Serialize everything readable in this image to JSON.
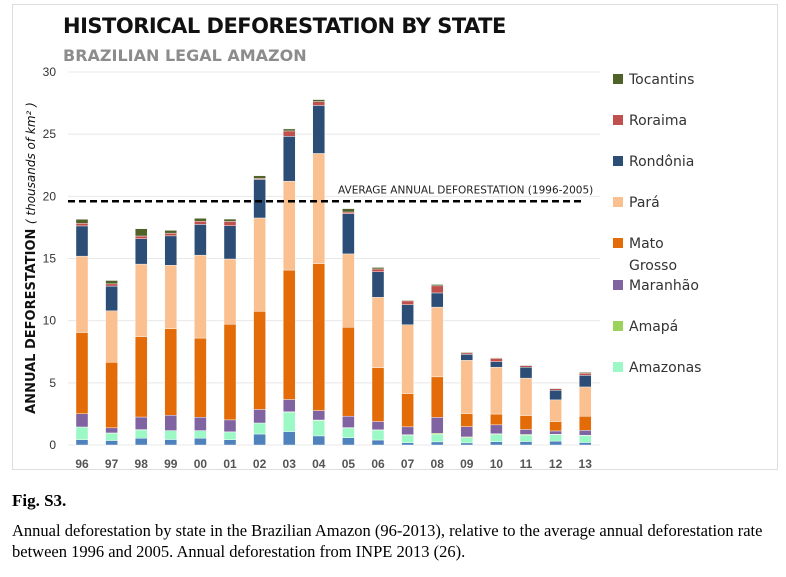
{
  "chart_data": {
    "type": "bar",
    "stacked": true,
    "title": "HISTORICAL DEFORESTATION BY STATE",
    "subtitle": "BRAZILIAN LEGAL AMAZON",
    "ylabel": "ANNUAL DEFORESTATION",
    "ylabel_unit": "( thousands of km² )",
    "ylim": [
      0,
      30
    ],
    "yticks": [
      0,
      5,
      10,
      15,
      20,
      25,
      30
    ],
    "grid": true,
    "legend": "right",
    "categories": [
      "96",
      "97",
      "98",
      "99",
      "00",
      "01",
      "02",
      "03",
      "04",
      "05",
      "06",
      "07",
      "08",
      "09",
      "10",
      "11",
      "12",
      "13"
    ],
    "series": [
      {
        "color": "#4f81bd",
        "values": [
          0.43,
          0.36,
          0.54,
          0.44,
          0.55,
          0.42,
          0.88,
          1.08,
          0.73,
          0.59,
          0.4,
          0.18,
          0.25,
          0.17,
          0.26,
          0.28,
          0.31,
          0.2
        ]
      },
      {
        "name": "Amazonas",
        "color": "#9cf9c6",
        "values": [
          1.02,
          0.59,
          0.67,
          0.72,
          0.61,
          0.63,
          0.89,
          1.56,
          1.23,
          0.78,
          0.79,
          0.61,
          0.6,
          0.41,
          0.6,
          0.5,
          0.52,
          0.56
        ]
      },
      {
        "name": "Amapá",
        "color": "#9bd25a",
        "values": [
          0,
          0.02,
          0.03,
          0,
          0,
          0.01,
          0,
          0.03,
          0.05,
          0.03,
          0.03,
          0.04,
          0.1,
          0.07,
          0.05,
          0.07,
          0.03,
          0.02
        ]
      },
      {
        "name": "Maranhão",
        "color": "#8064a2",
        "values": [
          1.06,
          0.41,
          1.01,
          1.23,
          1.07,
          0.96,
          1.09,
          0.99,
          0.76,
          0.92,
          0.67,
          0.63,
          1.27,
          0.83,
          0.71,
          0.4,
          0.27,
          0.4
        ]
      },
      {
        "name": "Mato Grosso",
        "color": "#e36c09",
        "values": [
          6.54,
          5.27,
          6.47,
          6.96,
          6.37,
          7.7,
          7.89,
          10.41,
          11.81,
          7.15,
          4.33,
          2.68,
          3.26,
          1.05,
          0.87,
          1.12,
          0.76,
          1.14
        ]
      },
      {
        "name": "Pará",
        "color": "#fac090",
        "values": [
          6.14,
          4.14,
          5.83,
          5.11,
          6.67,
          5.24,
          7.51,
          7.15,
          8.87,
          5.9,
          5.66,
          5.53,
          5.61,
          4.28,
          3.77,
          3.01,
          1.74,
          2.35
        ]
      },
      {
        "name": "Rondônia",
        "color": "#2c4d75",
        "values": [
          2.43,
          1.99,
          2.04,
          2.36,
          2.47,
          2.67,
          3.1,
          3.6,
          3.86,
          3.24,
          2.05,
          1.61,
          1.14,
          0.48,
          0.44,
          0.87,
          0.77,
          0.93
        ]
      },
      {
        "name": "Roraima",
        "color": "#c0504d",
        "values": [
          0.21,
          0.18,
          0.22,
          0.22,
          0.25,
          0.35,
          0.08,
          0.44,
          0.31,
          0.13,
          0.23,
          0.31,
          0.57,
          0.12,
          0.26,
          0.14,
          0.12,
          0.17
        ]
      },
      {
        "name": "Tocantins",
        "color": "#4f6228",
        "values": [
          0.32,
          0.27,
          0.58,
          0.22,
          0.24,
          0.19,
          0.21,
          0.16,
          0.16,
          0.27,
          0.12,
          0.06,
          0.11,
          0.06,
          0.05,
          0.04,
          0.05,
          0.07
        ]
      }
    ],
    "legend_order": [
      "Tocantins",
      "Roraima",
      "Rondônia",
      "Pará",
      "Mato Grosso",
      "Maranhão",
      "Amapá",
      "Amazonas"
    ],
    "reference_line": {
      "value": 19.6,
      "label": "AVERAGE ANNUAL DEFORESTATION (1996-2005)",
      "style": "dashed",
      "color": "#000000"
    }
  },
  "figure": {
    "label": "Fig. S3.",
    "caption": "Annual deforestation by state in the Brazilian Amazon (96-2013), relative to the average annual deforestation rate between 1996 and 2005. Annual deforestation from INPE 2013 (26)."
  }
}
